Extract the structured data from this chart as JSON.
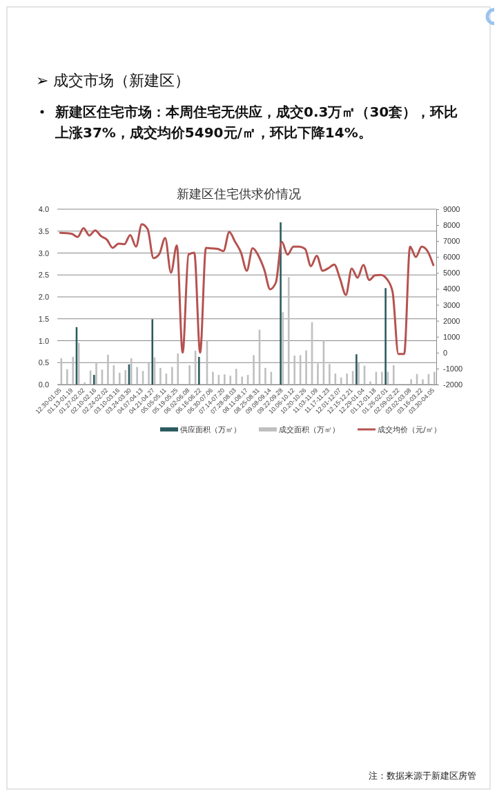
{
  "chart_data": {
    "type": "bar",
    "title": "新建区住宅供求价情况",
    "annotations": [
      "➢ 成交市场（新建区）",
      "新建区住宅市场：本周住宅无供应，成交0.3万㎡（30套），环比上涨37%，成交均价5490元/㎡，环比下降14%。",
      "注：数据来源于新建区房管"
    ],
    "categories": [
      "12.30-01.05",
      null,
      "01.13-01.19",
      null,
      "01.27-02.02",
      null,
      "02.10-02.16",
      null,
      "02.24-02.02",
      null,
      "03.10-03.16",
      null,
      "03.24-03.30",
      null,
      "04.07-04.13",
      null,
      "04.21-04.27",
      null,
      "05.05-05.11",
      null,
      "05.19-05.25",
      null,
      "06.02-06.08",
      null,
      "06.16-06.22",
      null,
      "06.30-07.06",
      null,
      "07.14-07.20",
      null,
      "07.28-08.03",
      null,
      "08.11-08.17",
      null,
      "08.25-08.31",
      null,
      "09.08-09.14",
      null,
      "09.22-09.28",
      null,
      "10.06-10.12",
      null,
      "10.20-10.26",
      null,
      "11.03-11.09",
      null,
      "11.17-11.23",
      null,
      "12.01-12.07",
      null,
      "12.15-12.21",
      null,
      "12.29-01.04",
      null,
      "01.12-01.18",
      null,
      "01.26-02.01",
      null,
      "02.09-02.22",
      null,
      "03.02-03.08",
      null,
      "03.16-03.22",
      null,
      "03.30-04.05"
    ],
    "series": [
      {
        "name": "供应面积（万㎡）",
        "color": "#2b5b5f",
        "values": [
          null,
          null,
          null,
          1.31,
          null,
          null,
          0.22,
          null,
          null,
          null,
          null,
          null,
          0.46,
          null,
          null,
          null,
          1.49,
          null,
          null,
          null,
          null,
          null,
          null,
          null,
          0.63,
          null,
          null,
          null,
          null,
          null,
          null,
          null,
          null,
          null,
          null,
          null,
          null,
          null,
          3.7,
          null,
          null,
          null,
          null,
          null,
          null,
          null,
          null,
          null,
          null,
          null,
          null,
          0.69,
          null,
          null,
          null,
          null,
          2.2,
          null,
          null,
          null,
          null,
          null,
          null,
          null,
          null
        ]
      },
      {
        "name": "成交面积（万㎡）",
        "color": "#bfbfbf",
        "values": [
          0.6,
          0.35,
          0.63,
          0.95,
          0.05,
          0.32,
          0.5,
          0.34,
          0.68,
          0.44,
          0.27,
          0.33,
          0.6,
          0.4,
          0.31,
          0.49,
          0.62,
          0.38,
          0.25,
          0.4,
          0.71,
          null,
          0.44,
          0.77,
          null,
          1.0,
          0.29,
          0.22,
          0.23,
          0.2,
          0.36,
          0.18,
          0.22,
          0.67,
          1.25,
          0.38,
          0.29,
          null,
          1.65,
          2.45,
          0.66,
          0.67,
          0.78,
          1.42,
          0.48,
          1.0,
          0.47,
          0.25,
          0.16,
          0.25,
          0.31,
          0.49,
          0.43,
          0.07,
          0.29,
          0.29,
          0.29,
          0.44,
          null,
          null,
          0.12,
          0.24,
          0.12,
          0.24,
          0.29
        ]
      },
      {
        "name": "成交均价（元/㎡）",
        "type": "line",
        "axis": "y2",
        "color": "#b5524f",
        "values": [
          7520,
          7500,
          7450,
          7260,
          7810,
          7350,
          7670,
          7310,
          7090,
          6580,
          6840,
          6800,
          7380,
          6650,
          8060,
          7740,
          5930,
          6190,
          7190,
          5020,
          6730,
          0,
          6150,
          6270,
          0,
          6580,
          6540,
          6510,
          6370,
          7570,
          6950,
          6290,
          5140,
          6550,
          6080,
          5210,
          3980,
          4410,
          6950,
          6150,
          6650,
          6650,
          6510,
          5430,
          6080,
          5140,
          5300,
          5530,
          4630,
          3620,
          5280,
          4700,
          5500,
          4560,
          4850,
          4880,
          4630,
          3830,
          -80,
          -80,
          6650,
          6000,
          6650,
          6370,
          5490
        ]
      }
    ],
    "ylim": [
      0,
      4
    ],
    "yticks": [
      {
        "value": 0,
        "label": "0.0"
      },
      {
        "value": 0.5,
        "label": "0.5"
      },
      {
        "value": 1,
        "label": "1.0"
      },
      {
        "value": 1.5,
        "label": "1.5"
      },
      {
        "value": 2,
        "label": "2.0"
      },
      {
        "value": 2.5,
        "label": "2.5"
      },
      {
        "value": 3,
        "label": "3.0"
      },
      {
        "value": 3.5,
        "label": "3.5"
      },
      {
        "value": 4,
        "label": "4.0"
      }
    ],
    "y2lim": [
      -2000,
      9000
    ],
    "y2ticks": [
      -2000,
      -1000,
      0,
      1000,
      2000,
      3000,
      4000,
      5000,
      6000,
      7000,
      8000,
      9000
    ],
    "grid": "y",
    "legend": "bottom",
    "line_style": "solid"
  }
}
